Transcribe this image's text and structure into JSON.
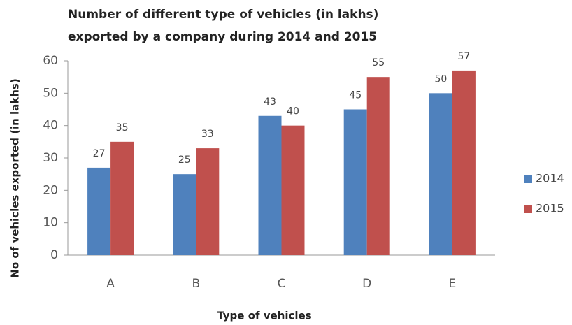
{
  "chart_data": {
    "type": "bar",
    "title": [
      "Number of different type of vehicles (in lakhs)",
      "exported by a company during 2014 and 2015"
    ],
    "x_label": "Type of vehicles",
    "y_label": "No of vehicles exported (in lakhs)",
    "categories": [
      "A",
      "B",
      "C",
      "D",
      "E"
    ],
    "series": [
      {
        "name": "2014",
        "color": "#4f81bd",
        "values": [
          27,
          25,
          43,
          45,
          50
        ]
      },
      {
        "name": "2015",
        "color": "#c0504d",
        "values": [
          35,
          33,
          40,
          55,
          57
        ]
      }
    ],
    "ylim": [
      0,
      60
    ],
    "yticks": [
      0,
      10,
      20,
      30,
      40,
      50,
      60
    ],
    "grid": false,
    "legend": "right"
  }
}
